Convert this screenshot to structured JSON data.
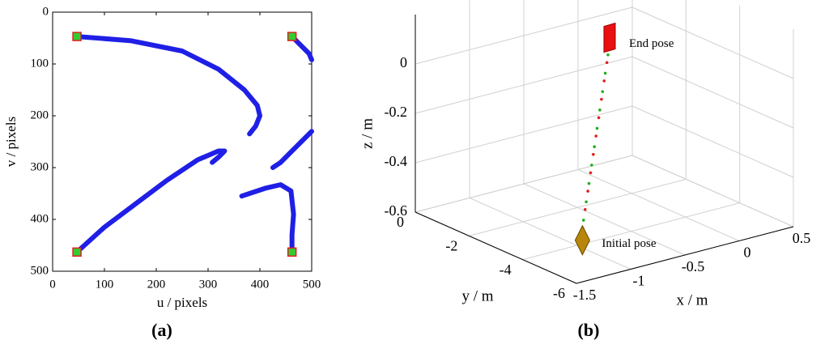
{
  "chart_data": [
    {
      "type": "line",
      "caption": "(a)",
      "xlabel": "u / pixels",
      "ylabel": "v / pixels",
      "xlim": [
        0,
        500
      ],
      "ylim": [
        500,
        0
      ],
      "xticks": [
        0,
        100,
        200,
        300,
        400,
        500
      ],
      "yticks": [
        0,
        100,
        200,
        300,
        400,
        500
      ],
      "series": [
        {
          "color": "#1f1fe6",
          "x": [
            47,
            150,
            250,
            320,
            370,
            395,
            400,
            392,
            380
          ],
          "values": [
            47,
            55,
            75,
            110,
            150,
            180,
            200,
            220,
            235
          ]
        },
        {
          "color": "#1f1fe6",
          "x": [
            462,
            480,
            495,
            500
          ],
          "values": [
            47,
            65,
            80,
            92
          ]
        },
        {
          "color": "#1f1fe6",
          "x": [
            47,
            100,
            160,
            220,
            280,
            320,
            332,
            320,
            308
          ],
          "values": [
            463,
            415,
            370,
            325,
            285,
            268,
            268,
            280,
            290
          ]
        },
        {
          "color": "#1f1fe6",
          "x": [
            462,
            462,
            465,
            460,
            440,
            410,
            380,
            365
          ],
          "values": [
            463,
            430,
            390,
            345,
            333,
            340,
            350,
            355
          ]
        },
        {
          "color": "#1f1fe6",
          "x": [
            500,
            480,
            460,
            440,
            425
          ],
          "values": [
            230,
            250,
            270,
            290,
            300
          ]
        }
      ],
      "markers": {
        "x": [
          47,
          462,
          47,
          462
        ],
        "values": [
          47,
          47,
          463,
          463
        ],
        "color": "#33cc33",
        "edgecolor": "#e02020"
      }
    },
    {
      "type": "scatter3d",
      "caption": "(b)",
      "xlabel": "x / m",
      "ylabel": "y / m",
      "zlabel": "z / m",
      "xlim": [
        -1.5,
        0.5
      ],
      "ylim": [
        -6,
        0
      ],
      "zlim": [
        -0.6,
        0.2
      ],
      "xticks": [
        -1.5,
        -1,
        -0.5,
        0,
        0.5
      ],
      "yticks": [
        0,
        -2,
        -4,
        -6
      ],
      "zticks": [
        0,
        -0.2,
        -0.4,
        -0.6
      ],
      "grid": true,
      "series": [
        {
          "color": "#e02020",
          "x": [
            -0.9,
            -0.87,
            -0.84,
            -0.81,
            -0.78,
            -0.75,
            -0.72,
            -0.69,
            -0.66,
            -0.63
          ],
          "y": [
            -3.8,
            -3.78,
            -3.76,
            -3.74,
            -3.72,
            -3.7,
            -3.68,
            -3.66,
            -3.64,
            -3.62
          ],
          "z": [
            -0.55,
            -0.48,
            -0.41,
            -0.34,
            -0.27,
            -0.2,
            -0.13,
            -0.06,
            0.01,
            0.08
          ]
        },
        {
          "color": "#20b020",
          "x": [
            -0.89,
            -0.86,
            -0.83,
            -0.8,
            -0.77,
            -0.74,
            -0.71,
            -0.68,
            -0.65,
            -0.62
          ],
          "y": [
            -3.8,
            -3.78,
            -3.76,
            -3.74,
            -3.72,
            -3.7,
            -3.68,
            -3.66,
            -3.64,
            -3.62
          ],
          "z": [
            -0.52,
            -0.45,
            -0.38,
            -0.31,
            -0.24,
            -0.17,
            -0.1,
            -0.03,
            0.04,
            0.11
          ]
        }
      ],
      "poses": [
        {
          "label": "End pose",
          "x": -0.6,
          "y": -3.6,
          "z": 0.15,
          "color": "#e81010"
        },
        {
          "label": "Initial pose",
          "x": -0.9,
          "y": -3.8,
          "z": -0.6,
          "color": "#b8860b"
        }
      ]
    }
  ]
}
